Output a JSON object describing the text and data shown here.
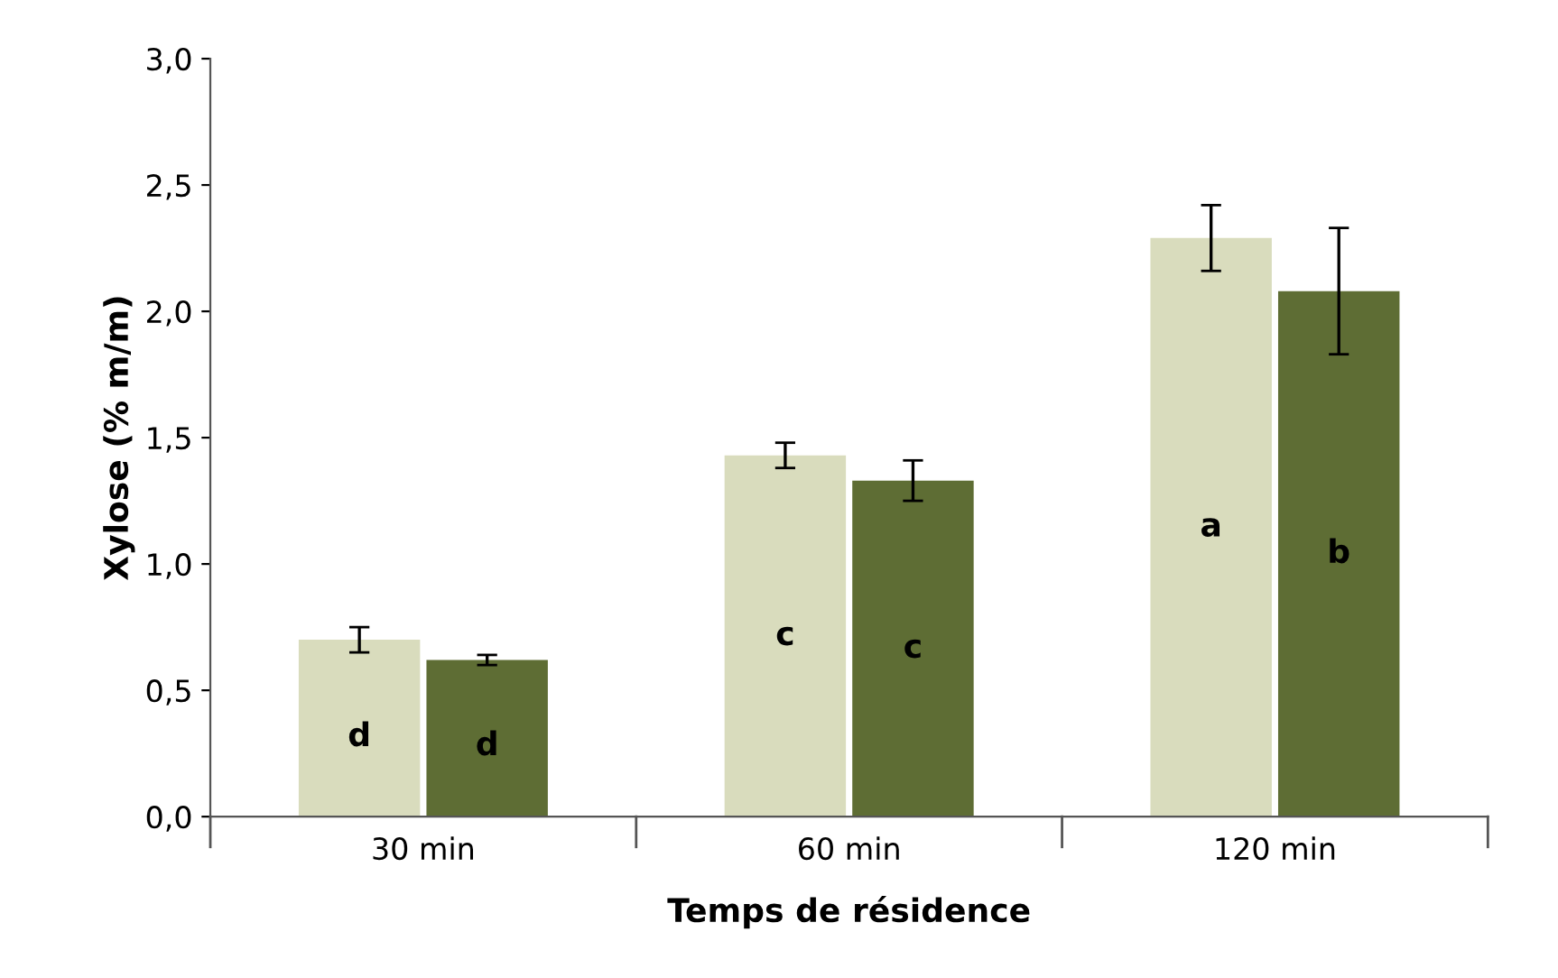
{
  "chart_data": {
    "type": "bar",
    "xlabel": "Temps de résidence",
    "ylabel": "Xylose (% m/m)",
    "categories": [
      "30 min",
      "60 min",
      "120 min"
    ],
    "series": [
      {
        "color": "#d9dcbd",
        "values": [
          0.7,
          1.43,
          2.29
        ],
        "errors": [
          0.05,
          0.05,
          0.13
        ],
        "value_labels": [
          "d",
          "c",
          "a"
        ]
      },
      {
        "color": "#5e6d34",
        "values": [
          0.62,
          1.33,
          2.08
        ],
        "errors": [
          0.02,
          0.08,
          0.25
        ],
        "value_labels": [
          "d",
          "c",
          "b"
        ]
      }
    ],
    "ylim": [
      0,
      3
    ],
    "yticks": [
      {
        "value": 0,
        "label": "0,0"
      },
      {
        "value": 0.5,
        "label": "0,5"
      },
      {
        "value": 1,
        "label": "1,0"
      },
      {
        "value": 1.5,
        "label": "1,5"
      },
      {
        "value": 2,
        "label": "2,0"
      },
      {
        "value": 2.5,
        "label": "2,5"
      },
      {
        "value": 3,
        "label": "3,0"
      }
    ],
    "grid": false,
    "legend": false
  }
}
